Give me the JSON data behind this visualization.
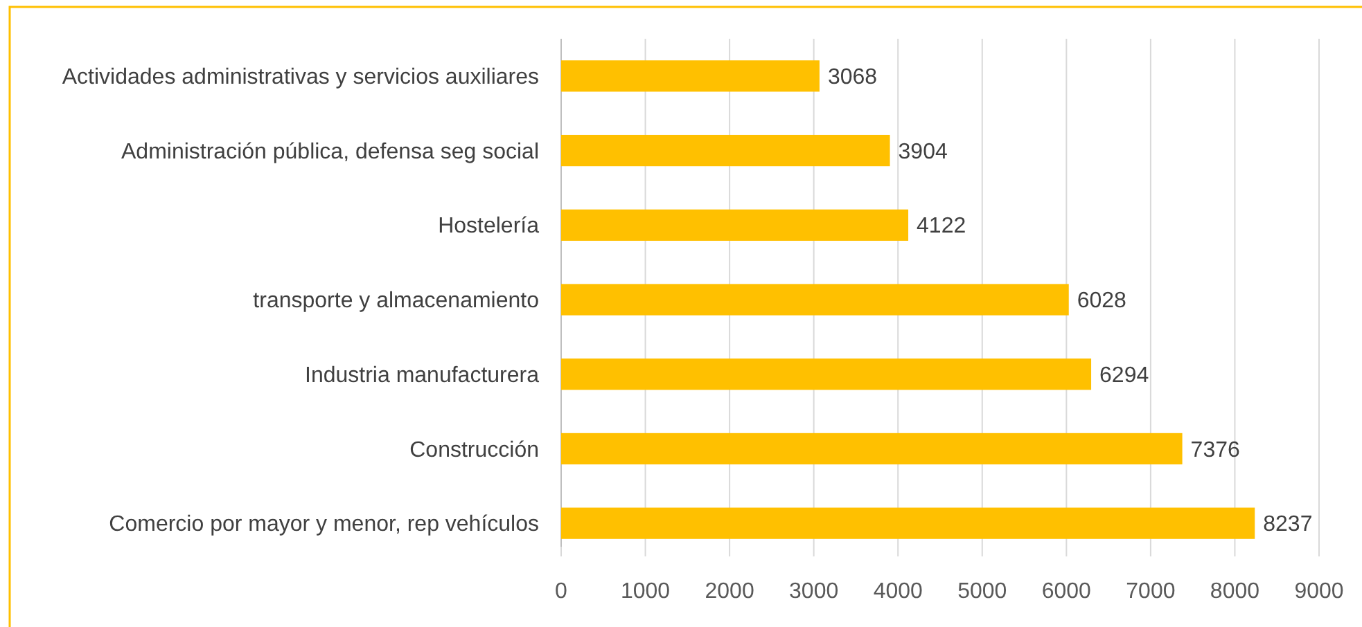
{
  "chart_data": {
    "type": "bar",
    "orientation": "horizontal",
    "categories": [
      "Actividades administrativas y servicios auxiliares",
      "Administración pública, defensa seg social",
      "Hostelería",
      "transporte y almacenamiento",
      "Industria manufacturera",
      "Construcción",
      "Comercio por mayor y menor, rep vehículos"
    ],
    "values": [
      3068,
      3904,
      4122,
      6028,
      6294,
      7376,
      8237
    ],
    "color": "#ffc000",
    "xlim": [
      0,
      9000
    ],
    "xticks": [
      0,
      1000,
      2000,
      3000,
      4000,
      5000,
      6000,
      7000,
      8000,
      9000
    ],
    "grid": "x",
    "data_labels": true
  }
}
